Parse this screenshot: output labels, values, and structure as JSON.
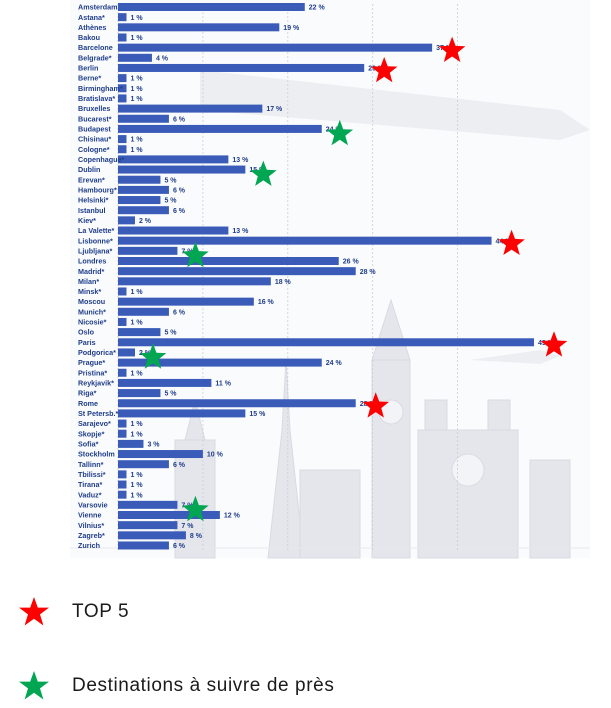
{
  "chart_data": {
    "type": "bar",
    "orientation": "horizontal",
    "categories": [
      "Amsterdam",
      "Astana*",
      "Athènes",
      "Bakou",
      "Barcelone",
      "Belgrade*",
      "Berlin",
      "Berne*",
      "Birmingham*",
      "Bratislava*",
      "Bruxelles",
      "Bucarest*",
      "Budapest",
      "Chisinau*",
      "Cologne*",
      "Copenhague*",
      "Dublin",
      "Erevan*",
      "Hambourg*",
      "Helsinki*",
      "Istanbul",
      "Kiev*",
      "La Valette*",
      "Lisbonne*",
      "Ljubljana*",
      "Londres",
      "Madrid*",
      "Milan*",
      "Minsk*",
      "Moscou",
      "Munich*",
      "Nicosie*",
      "Oslo",
      "Paris",
      "Podgorica*",
      "Prague*",
      "Pristina*",
      "Reykjavik*",
      "Riga*",
      "Rome",
      "St Petersb.*",
      "Sarajevo*",
      "Skopje*",
      "Sofia*",
      "Stockholm",
      "Tallinn*",
      "Tbilissi*",
      "Tirana*",
      "Vaduz*",
      "Varsovie",
      "Vienne",
      "Vilnius*",
      "Zagreb*",
      "Zurich"
    ],
    "values": [
      22,
      1,
      19,
      1,
      37,
      4,
      29,
      1,
      1,
      1,
      17,
      6,
      24,
      1,
      1,
      13,
      15,
      5,
      6,
      5,
      6,
      2,
      13,
      44,
      7,
      26,
      28,
      18,
      1,
      16,
      6,
      1,
      5,
      49,
      2,
      24,
      1,
      11,
      5,
      28,
      15,
      1,
      1,
      3,
      10,
      6,
      1,
      1,
      1,
      7,
      12,
      7,
      8,
      6
    ],
    "value_suffix": " %",
    "xlim": [
      0,
      49
    ],
    "bar_color": "#3a5cb8",
    "markers": {
      "top5": [
        "Barcelone",
        "Berlin",
        "Lisbonne*",
        "Paris",
        "Rome"
      ],
      "watch": [
        "Budapest",
        "Dublin",
        "Ljubljana*",
        "Podgorica*",
        "Varsovie"
      ]
    },
    "grid": true
  },
  "legend": {
    "top5_label": "TOP 5",
    "watch_label": "Destinations à suivre de près",
    "top5_color": "#ff0000",
    "watch_color": "#00a651",
    "top5_icon": "red-star-icon",
    "watch_icon": "green-star-icon"
  }
}
